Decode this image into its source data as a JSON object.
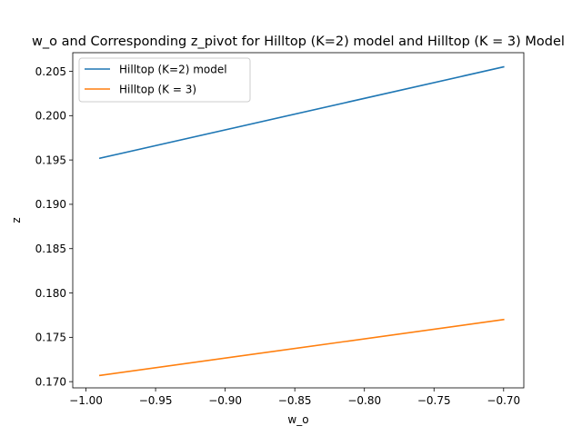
{
  "chart_data": {
    "type": "line",
    "title": "w_o and Corresponding z_pivot for Hilltop (K=2) model and Hilltop (K = 3) Model",
    "xlabel": "w_o",
    "ylabel": "z",
    "xlim": [
      -1.0095,
      -0.6855
    ],
    "ylim": [
      0.1693,
      0.2071
    ],
    "xticks": [
      -1.0,
      -0.95,
      -0.9,
      -0.85,
      -0.8,
      -0.75,
      -0.7
    ],
    "xtick_labels": [
      "−1.00",
      "−0.95",
      "−0.90",
      "−0.85",
      "−0.80",
      "−0.75",
      "−0.70"
    ],
    "yticks": [
      0.17,
      0.175,
      0.18,
      0.185,
      0.19,
      0.195,
      0.2,
      0.205
    ],
    "ytick_labels": [
      "0.170",
      "0.175",
      "0.180",
      "0.185",
      "0.190",
      "0.195",
      "0.200",
      "0.205"
    ],
    "grid": false,
    "legend_position": "top-left",
    "series": [
      {
        "name": "Hilltop (K=2) model",
        "color": "#1f77b4",
        "x": [
          -0.99,
          -0.7
        ],
        "y": [
          0.1952,
          0.2055
        ]
      },
      {
        "name": "Hilltop (K = 3)",
        "color": "#ff7f0e",
        "x": [
          -0.99,
          -0.7
        ],
        "y": [
          0.1707,
          0.177
        ]
      }
    ]
  }
}
